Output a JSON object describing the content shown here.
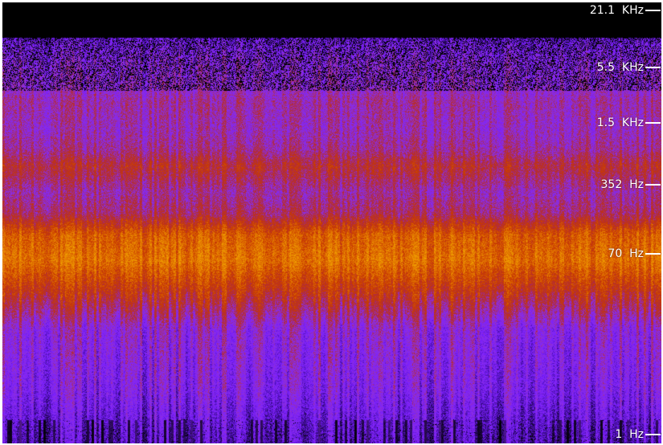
{
  "chart_data": {
    "type": "heatmap",
    "title": "",
    "xlabel": "",
    "ylabel": "",
    "y_scale": "log",
    "y_axis_side": "right",
    "y_ticks": [
      {
        "hz": 21100,
        "label": "21.1  KHz"
      },
      {
        "hz": 5500,
        "label": "5.5  KHz"
      },
      {
        "hz": 1500,
        "label": "1.5  KHz"
      },
      {
        "hz": 352,
        "label": "352  Hz"
      },
      {
        "hz": 70,
        "label": "70  Hz"
      },
      {
        "hz": 1,
        "label": "1  Hz"
      }
    ],
    "ylim_hz": [
      1,
      25000
    ],
    "colormap": [
      "#000000",
      "#3a0a8c",
      "#7a1fff",
      "#8c2fe0",
      "#b02a40",
      "#c83a00",
      "#e07000",
      "#f0a000"
    ],
    "energy_profile_by_frequency_hz": [
      {
        "hz": 25000,
        "level": 0.0
      },
      {
        "hz": 16000,
        "level": 0.08
      },
      {
        "hz": 10000,
        "level": 0.3
      },
      {
        "hz": 6500,
        "level": 0.38
      },
      {
        "hz": 3500,
        "level": 0.42
      },
      {
        "hz": 2500,
        "level": 0.48
      },
      {
        "hz": 1300,
        "level": 0.45
      },
      {
        "hz": 800,
        "level": 0.5
      },
      {
        "hz": 550,
        "level": 0.62
      },
      {
        "hz": 300,
        "level": 0.48
      },
      {
        "hz": 180,
        "level": 0.55
      },
      {
        "hz": 110,
        "level": 0.8
      },
      {
        "hz": 60,
        "level": 0.86
      },
      {
        "hz": 30,
        "level": 0.68
      },
      {
        "hz": 12,
        "level": 0.4
      },
      {
        "hz": 3,
        "level": 0.34
      },
      {
        "hz": 1,
        "level": 0.22
      }
    ]
  }
}
